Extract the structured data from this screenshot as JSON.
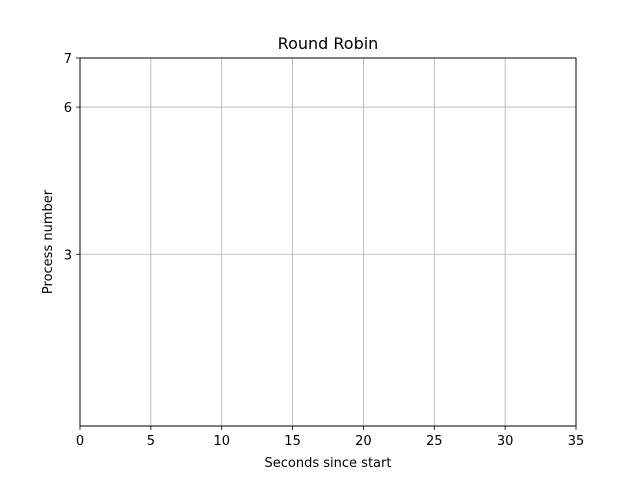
{
  "chart_data": {
    "type": "scatter",
    "title": "Round Robin",
    "xlabel": "Seconds since start",
    "ylabel": "Process number",
    "xlim": [
      0,
      35
    ],
    "ylim": [
      -0.5,
      7
    ],
    "x_ticks": [
      0,
      5,
      10,
      15,
      20,
      25,
      30,
      35
    ],
    "y_ticks": [
      3,
      6,
      7
    ],
    "grid": true,
    "series": []
  }
}
